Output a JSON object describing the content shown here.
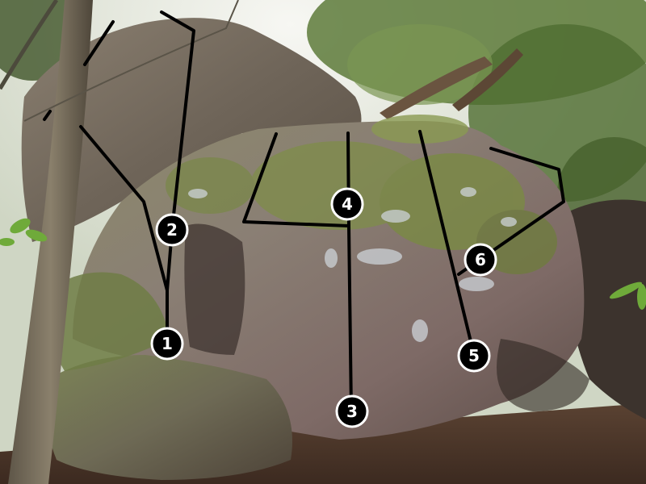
{
  "image": {
    "subject": "boulder-topo-photo",
    "route_line_color": "#000000",
    "marker_fill": "#000000",
    "marker_ring": "#ffffff",
    "marker_text_color": "#ffffff"
  },
  "routes": [
    {
      "number": "1"
    },
    {
      "number": "2"
    },
    {
      "number": "3"
    },
    {
      "number": "4"
    },
    {
      "number": "5"
    },
    {
      "number": "6"
    }
  ]
}
